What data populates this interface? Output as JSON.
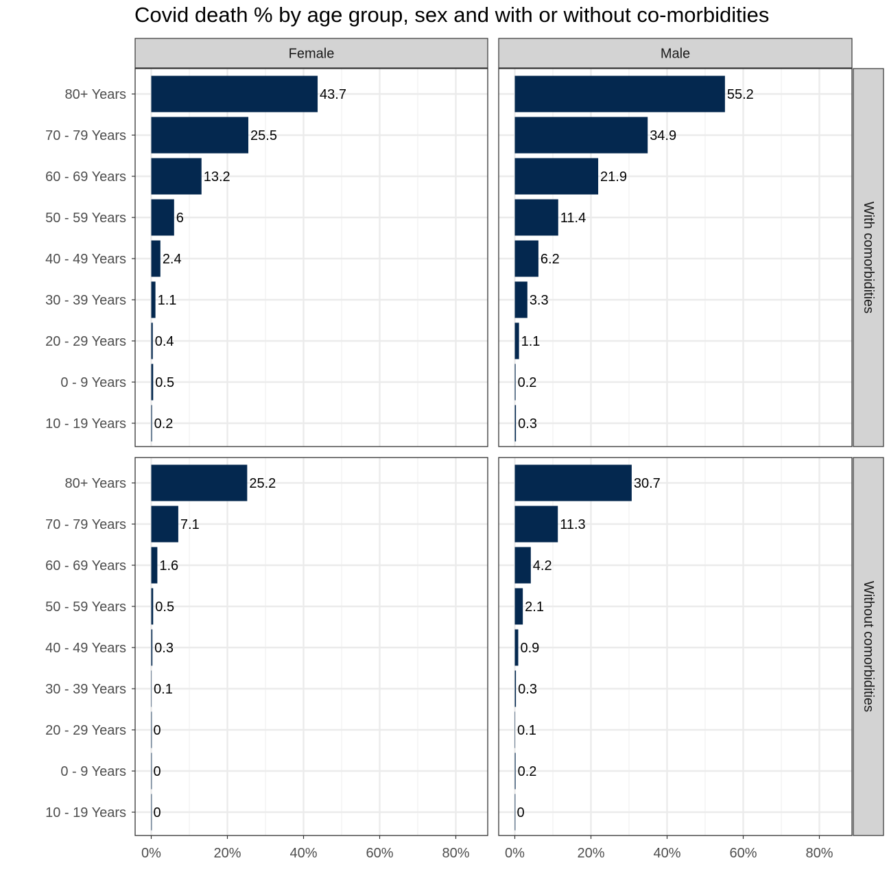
{
  "chart_data": {
    "type": "bar",
    "orientation": "horizontal",
    "title": "Covid death % by age group, sex and with or without co-morbidities",
    "xlabel": "",
    "ylabel": "",
    "xlim": [
      0,
      88
    ],
    "x_ticks": [
      "0%",
      "20%",
      "40%",
      "60%",
      "80%"
    ],
    "x_tick_values": [
      0,
      20,
      40,
      60,
      80
    ],
    "grid": true,
    "bar_color": "#04284f",
    "strip_fill": "#d3d3d3",
    "categories": [
      "80+ Years",
      "70 - 79 Years",
      "60 - 69 Years",
      "50 - 59 Years",
      "40 - 49 Years",
      "30 - 39 Years",
      "20 - 29 Years",
      "0 - 9 Years",
      "10 - 19 Years"
    ],
    "columns": [
      "Female",
      "Male"
    ],
    "rows": [
      "With comorbidities",
      "Without comorbidities"
    ],
    "panels": [
      {
        "column": "Female",
        "row": "With comorbidities",
        "values": [
          43.7,
          25.5,
          13.2,
          6,
          2.4,
          1.1,
          0.4,
          0.5,
          0.2
        ]
      },
      {
        "column": "Male",
        "row": "With comorbidities",
        "values": [
          55.2,
          34.9,
          21.9,
          11.4,
          6.2,
          3.3,
          1.1,
          0.2,
          0.3
        ]
      },
      {
        "column": "Female",
        "row": "Without comorbidities",
        "values": [
          25.2,
          7.1,
          1.6,
          0.5,
          0.3,
          0.1,
          0,
          0,
          0
        ]
      },
      {
        "column": "Male",
        "row": "Without comorbidities",
        "values": [
          30.7,
          11.3,
          4.2,
          2.1,
          0.9,
          0.3,
          0.1,
          0.2,
          0
        ]
      }
    ]
  }
}
